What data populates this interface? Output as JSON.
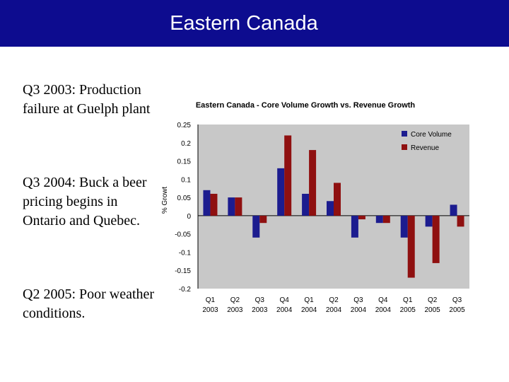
{
  "slide": {
    "title": "Eastern Canada",
    "notes": [
      "Q3 2003: Production failure at Guelph plant",
      "Q3 2004: Buck a beer pricing begins in Ontario and Quebec.",
      "Q2 2005: Poor weather conditions."
    ]
  },
  "colors": {
    "header_bg": "#0d0c8f",
    "core_volume": "#1c1c8f",
    "revenue": "#8f1010",
    "plot_bg": "#c8c8c8"
  },
  "chart_data": {
    "type": "bar",
    "title": "Eastern Canada - Core Volume Growth vs. Revenue Growth",
    "xlabel": "",
    "ylabel": "% Growt",
    "ylim": [
      -0.2,
      0.25
    ],
    "yticks": [
      0.25,
      0.2,
      0.15,
      0.1,
      0.05,
      0,
      -0.05,
      -0.1,
      -0.15,
      -0.2
    ],
    "ytick_labels": [
      "0.25",
      "0.2",
      "0.15",
      "0.1",
      "0.05",
      "0",
      "-0.05",
      "-0.1",
      "-0.15",
      "-0.2"
    ],
    "categories": [
      [
        "Q1",
        "2003"
      ],
      [
        "Q2",
        "2003"
      ],
      [
        "Q3",
        "2003"
      ],
      [
        "Q4",
        "2004"
      ],
      [
        "Q1",
        "2004"
      ],
      [
        "Q2",
        "2004"
      ],
      [
        "Q3",
        "2004"
      ],
      [
        "Q4",
        "2004"
      ],
      [
        "Q1",
        "2005"
      ],
      [
        "Q2",
        "2005"
      ],
      [
        "Q3",
        "2005"
      ]
    ],
    "series": [
      {
        "name": "Core Volume",
        "values": [
          0.07,
          0.05,
          -0.06,
          0.13,
          0.06,
          0.04,
          -0.06,
          -0.02,
          -0.06,
          -0.03,
          0.03
        ]
      },
      {
        "name": "Revenue",
        "values": [
          0.06,
          0.05,
          -0.02,
          0.22,
          0.18,
          0.09,
          -0.01,
          -0.02,
          -0.17,
          -0.13,
          -0.03
        ]
      }
    ],
    "legend": "top-right",
    "grid": false
  }
}
